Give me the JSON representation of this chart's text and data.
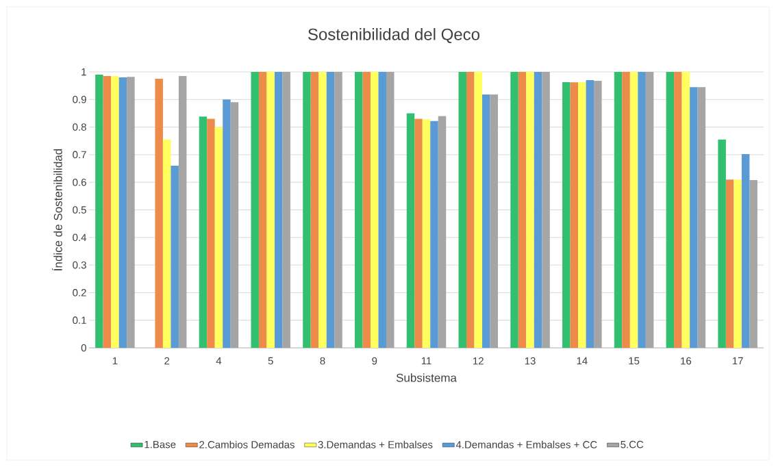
{
  "chart_data": {
    "type": "bar",
    "title": "Sostenibilidad del Qeco",
    "xlabel": "Subsistema",
    "ylabel": "Índice de Sostenibilidad",
    "categories": [
      "1",
      "2",
      "4",
      "5",
      "8",
      "9",
      "11",
      "12",
      "13",
      "14",
      "15",
      "16",
      "17"
    ],
    "series": [
      {
        "name": "1.Base",
        "color": "#33bf70",
        "values": [
          0.99,
          null,
          0.838,
          1,
          1,
          1,
          0.85,
          1,
          1,
          0.963,
          1,
          1,
          0.755
        ]
      },
      {
        "name": "2.Cambios Demadas",
        "color": "#ed8b4a",
        "values": [
          0.985,
          0.975,
          0.83,
          1,
          1,
          1,
          0.83,
          1,
          1,
          0.962,
          1,
          1,
          0.61
        ]
      },
      {
        "name": "3.Demandas + Embalses",
        "color": "#ffff5e",
        "values": [
          0.985,
          0.755,
          0.8,
          1,
          1,
          1,
          0.828,
          1,
          1,
          0.963,
          1,
          1,
          0.61
        ]
      },
      {
        "name": "4.Demandas + Embalses + CC",
        "color": "#5b9bd5",
        "values": [
          0.98,
          0.66,
          0.9,
          1,
          1,
          1,
          0.822,
          0.918,
          1,
          0.97,
          1,
          0.945,
          0.702
        ]
      },
      {
        "name": "5.CC",
        "color": "#a5a5a5",
        "values": [
          0.982,
          0.985,
          0.89,
          1,
          1,
          1,
          0.84,
          0.918,
          1,
          0.968,
          1,
          0.945,
          0.608
        ]
      }
    ],
    "ylim": [
      0,
      1
    ],
    "yticks": [
      0,
      0.1,
      0.2,
      0.3,
      0.4,
      0.5,
      0.6,
      0.7,
      0.8,
      0.9,
      1
    ],
    "grid": "y",
    "legend": "bottom"
  }
}
